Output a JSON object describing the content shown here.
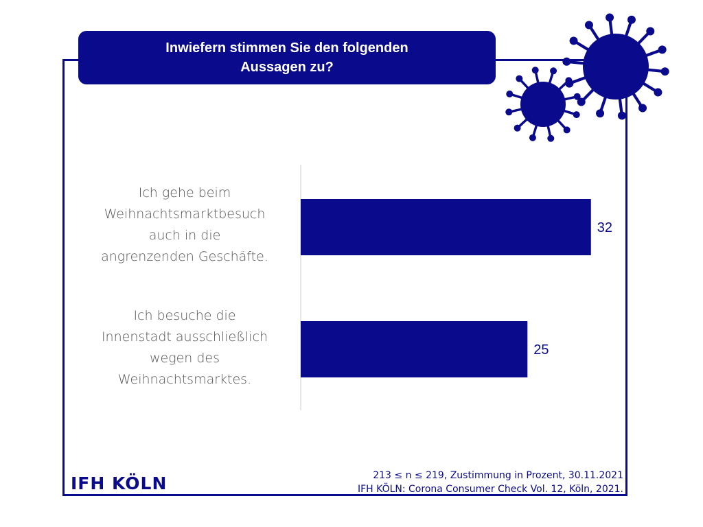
{
  "title": {
    "line1": "Inwiefern stimmen Sie den folgenden",
    "line2": "Aussagen zu?"
  },
  "colors": {
    "primary": "#0a0a8c",
    "label_text": "#555555",
    "axis": "#cccccc",
    "background": "#ffffff"
  },
  "decoration": {
    "icon": "virus-icon"
  },
  "chart_data": {
    "type": "bar",
    "orientation": "horizontal",
    "categories": [
      [
        "Ich gehe beim",
        "Weihnachtsmarktbesuch",
        "auch in die",
        "angrenzenden Geschäfte."
      ],
      [
        "Ich besuche die",
        "Innenstadt ausschließlich",
        "wegen des",
        "Weihnachtsmarktes."
      ]
    ],
    "values": [
      32,
      25
    ],
    "value_labels": [
      "32",
      "25"
    ],
    "xlim": [
      0,
      33
    ],
    "grid": false,
    "legend": "none"
  },
  "logo": {
    "text": "IFH KÖLN"
  },
  "footnote": {
    "line1": "213 ≤ n ≤ 219, Zustimmung in Prozent, 30.11.2021",
    "line2": "IFH KÖLN: Corona Consumer Check Vol. 12, Köln, 2021."
  }
}
